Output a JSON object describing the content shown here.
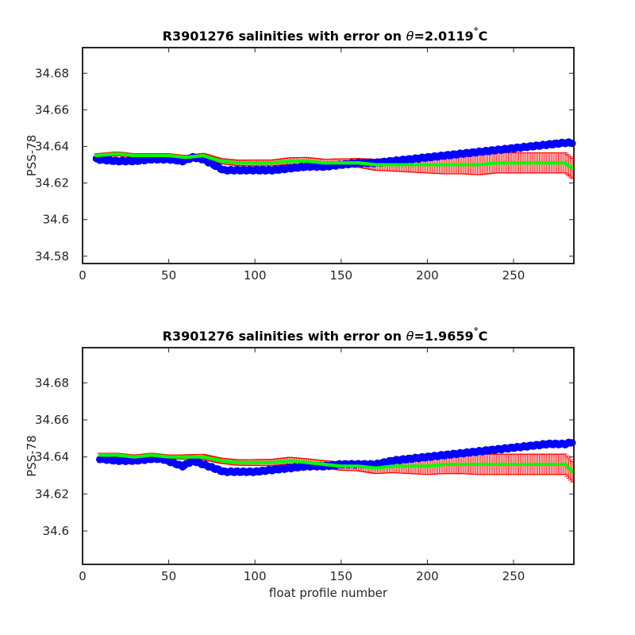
{
  "chart_data": [
    {
      "type": "scatter",
      "title": {
        "prefix": "R3901276 salinities with error on ",
        "symbol": "θ",
        "value": "=2.0119",
        "degree": "°",
        "unit": "C"
      },
      "xlabel": "",
      "ylabel": "PSS-78",
      "xlim": [
        0,
        285
      ],
      "ylim": [
        34.576,
        34.694
      ],
      "xticks": [
        0,
        50,
        100,
        150,
        200,
        250
      ],
      "yticks": [
        34.58,
        34.6,
        34.62,
        34.64,
        34.66,
        34.68
      ],
      "ytick_labels": [
        "34.58",
        "34.6",
        "34.62",
        "34.64",
        "34.66",
        "34.68"
      ],
      "colors": {
        "float": "#0000ff",
        "mapped": "#00ff00",
        "error": "#ff0000"
      },
      "float_salinity": {
        "x": [
          8,
          20,
          30,
          40,
          50,
          58,
          64,
          70,
          76,
          82,
          90,
          100,
          110,
          120,
          130,
          140,
          150,
          160,
          170,
          180,
          190,
          200,
          210,
          220,
          230,
          240,
          250,
          260,
          270,
          280,
          284
        ],
        "y": [
          34.633,
          34.632,
          34.632,
          34.633,
          34.633,
          34.632,
          34.634,
          34.633,
          34.63,
          34.627,
          34.627,
          34.627,
          34.627,
          34.628,
          34.629,
          34.629,
          34.63,
          34.631,
          34.631,
          34.632,
          34.633,
          34.634,
          34.635,
          34.636,
          34.637,
          34.638,
          34.639,
          34.64,
          34.641,
          34.642,
          34.642
        ]
      },
      "mapped_salinity": {
        "x": [
          8,
          20,
          30,
          40,
          50,
          60,
          70,
          80,
          90,
          100,
          110,
          120,
          130,
          140,
          150,
          160,
          170,
          180,
          190,
          200,
          210,
          220,
          230,
          240,
          250,
          260,
          270,
          280,
          284
        ],
        "y": [
          34.635,
          34.636,
          34.635,
          34.635,
          34.635,
          34.634,
          34.635,
          34.632,
          34.631,
          34.631,
          34.631,
          34.632,
          34.632,
          34.631,
          34.631,
          34.631,
          34.63,
          34.63,
          34.63,
          34.63,
          34.63,
          34.63,
          34.63,
          34.631,
          34.631,
          34.631,
          34.631,
          34.631,
          34.628
        ],
        "err": [
          0.001,
          0.001,
          0.001,
          0.001,
          0.001,
          0.001,
          0.0012,
          0.0014,
          0.0015,
          0.0016,
          0.0016,
          0.0018,
          0.002,
          0.002,
          0.0022,
          0.0024,
          0.003,
          0.0035,
          0.004,
          0.0045,
          0.005,
          0.005,
          0.0055,
          0.0055,
          0.0055,
          0.0055,
          0.0055,
          0.0055,
          0.0055
        ]
      }
    },
    {
      "type": "scatter",
      "title": {
        "prefix": "R3901276 salinities with error on ",
        "symbol": "θ",
        "value": "=1.9659",
        "degree": "°",
        "unit": "C"
      },
      "xlabel": "float profile number",
      "ylabel": "PSS-78",
      "xlim": [
        0,
        285
      ],
      "ylim": [
        34.582,
        34.699
      ],
      "xticks": [
        0,
        50,
        100,
        150,
        200,
        250
      ],
      "yticks": [
        34.6,
        34.62,
        34.64,
        34.66,
        34.68
      ],
      "ytick_labels": [
        "34.6",
        "34.62",
        "34.64",
        "34.66",
        "34.68"
      ],
      "colors": {
        "float": "#0000ff",
        "mapped": "#00ff00",
        "error": "#ff0000"
      },
      "float_salinity": {
        "x": [
          10,
          20,
          30,
          40,
          46,
          52,
          58,
          64,
          70,
          76,
          82,
          90,
          100,
          110,
          120,
          130,
          140,
          150,
          160,
          170,
          175,
          180,
          190,
          200,
          210,
          220,
          230,
          240,
          250,
          260,
          270,
          280,
          284
        ],
        "y": [
          34.639,
          34.638,
          34.638,
          34.639,
          34.639,
          34.637,
          34.635,
          34.638,
          34.636,
          34.634,
          34.632,
          34.632,
          34.632,
          34.633,
          34.634,
          34.635,
          34.635,
          34.636,
          34.636,
          34.636,
          34.637,
          34.638,
          34.639,
          34.64,
          34.641,
          34.642,
          34.643,
          34.644,
          34.645,
          34.646,
          34.647,
          34.647,
          34.648
        ]
      },
      "mapped_salinity": {
        "x": [
          10,
          20,
          30,
          40,
          50,
          60,
          70,
          80,
          90,
          100,
          110,
          120,
          130,
          140,
          150,
          160,
          170,
          180,
          190,
          200,
          210,
          220,
          230,
          240,
          250,
          260,
          270,
          280,
          284
        ],
        "y": [
          34.641,
          34.641,
          34.64,
          34.641,
          34.64,
          34.64,
          34.64,
          34.638,
          34.637,
          34.637,
          34.637,
          34.638,
          34.637,
          34.636,
          34.635,
          34.635,
          34.634,
          34.635,
          34.635,
          34.635,
          34.636,
          34.636,
          34.636,
          34.636,
          34.636,
          34.636,
          34.636,
          34.636,
          34.632
        ],
        "err": [
          0.001,
          0.001,
          0.001,
          0.001,
          0.001,
          0.0012,
          0.0014,
          0.0014,
          0.0015,
          0.0016,
          0.0017,
          0.0018,
          0.002,
          0.002,
          0.0022,
          0.0025,
          0.003,
          0.0035,
          0.004,
          0.0045,
          0.005,
          0.005,
          0.0055,
          0.0055,
          0.0055,
          0.0055,
          0.0055,
          0.0055,
          0.0055
        ]
      }
    }
  ]
}
